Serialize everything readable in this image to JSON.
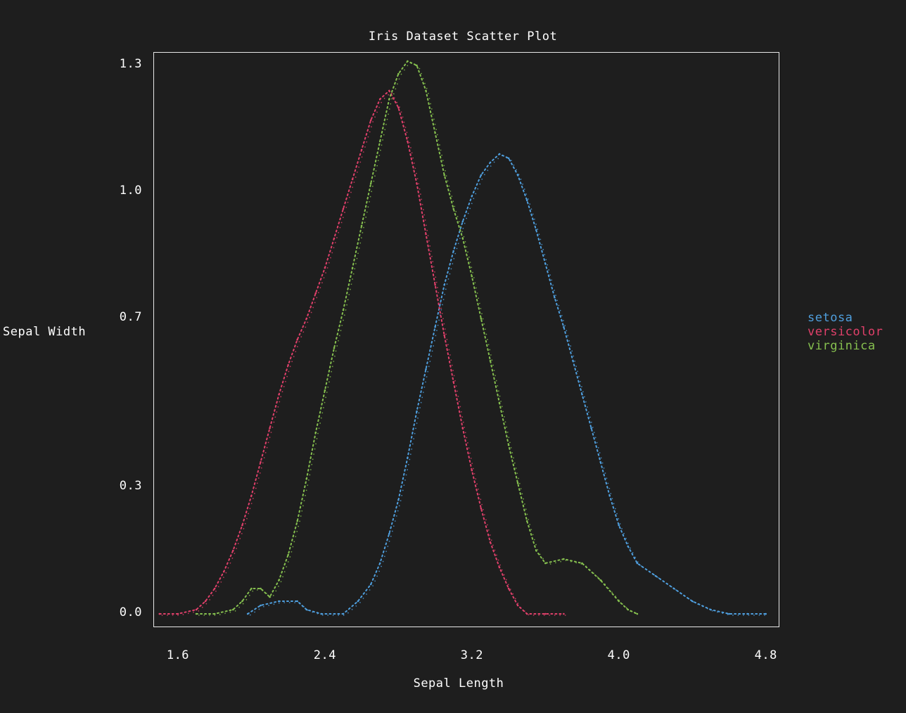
{
  "chart_data": {
    "type": "line",
    "title": "Iris Dataset Scatter Plot",
    "xlabel": "Sepal Length",
    "ylabel": "Sepal Width",
    "x_ticks": [
      "1.6",
      "2.4",
      "3.2",
      "4.0",
      "4.8"
    ],
    "x_tick_values": [
      1.6,
      2.4,
      3.2,
      4.0,
      4.8
    ],
    "y_ticks": [
      "0.0",
      "0.3",
      "0.7",
      "1.0",
      "1.3"
    ],
    "y_tick_values": [
      0.0,
      0.3,
      0.7,
      1.0,
      1.3
    ],
    "xlim": [
      1.47,
      4.87
    ],
    "ylim": [
      -0.03,
      1.33
    ],
    "grid": false,
    "legend_position": "right",
    "marker": "braille-dot",
    "series": [
      {
        "name": "setosa",
        "color": "#4f9fde",
        "points": [
          [
            1.98,
            0.0
          ],
          [
            2.05,
            0.02
          ],
          [
            2.15,
            0.03
          ],
          [
            2.25,
            0.03
          ],
          [
            2.3,
            0.01
          ],
          [
            2.38,
            0.0
          ],
          [
            2.5,
            0.0
          ],
          [
            2.58,
            0.03
          ],
          [
            2.65,
            0.07
          ],
          [
            2.7,
            0.12
          ],
          [
            2.75,
            0.19
          ],
          [
            2.8,
            0.27
          ],
          [
            2.85,
            0.37
          ],
          [
            2.9,
            0.48
          ],
          [
            2.95,
            0.58
          ],
          [
            3.0,
            0.68
          ],
          [
            3.05,
            0.78
          ],
          [
            3.1,
            0.86
          ],
          [
            3.15,
            0.93
          ],
          [
            3.2,
            0.99
          ],
          [
            3.25,
            1.04
          ],
          [
            3.3,
            1.07
          ],
          [
            3.35,
            1.09
          ],
          [
            3.4,
            1.08
          ],
          [
            3.45,
            1.04
          ],
          [
            3.5,
            0.98
          ],
          [
            3.55,
            0.91
          ],
          [
            3.6,
            0.83
          ],
          [
            3.65,
            0.75
          ],
          [
            3.7,
            0.68
          ],
          [
            3.75,
            0.6
          ],
          [
            3.8,
            0.52
          ],
          [
            3.85,
            0.44
          ],
          [
            3.9,
            0.36
          ],
          [
            3.95,
            0.28
          ],
          [
            4.0,
            0.21
          ],
          [
            4.05,
            0.16
          ],
          [
            4.1,
            0.12
          ],
          [
            4.2,
            0.09
          ],
          [
            4.3,
            0.06
          ],
          [
            4.4,
            0.03
          ],
          [
            4.5,
            0.01
          ],
          [
            4.6,
            0.0
          ],
          [
            4.7,
            0.0
          ],
          [
            4.8,
            0.0
          ]
        ]
      },
      {
        "name": "versicolor",
        "color": "#e0406a",
        "points": [
          [
            1.5,
            0.0
          ],
          [
            1.6,
            0.0
          ],
          [
            1.7,
            0.01
          ],
          [
            1.75,
            0.03
          ],
          [
            1.8,
            0.06
          ],
          [
            1.85,
            0.1
          ],
          [
            1.9,
            0.15
          ],
          [
            1.95,
            0.21
          ],
          [
            2.0,
            0.28
          ],
          [
            2.05,
            0.36
          ],
          [
            2.1,
            0.44
          ],
          [
            2.15,
            0.52
          ],
          [
            2.2,
            0.59
          ],
          [
            2.25,
            0.65
          ],
          [
            2.3,
            0.7
          ],
          [
            2.35,
            0.76
          ],
          [
            2.4,
            0.82
          ],
          [
            2.45,
            0.89
          ],
          [
            2.5,
            0.96
          ],
          [
            2.55,
            1.03
          ],
          [
            2.6,
            1.1
          ],
          [
            2.65,
            1.17
          ],
          [
            2.7,
            1.22
          ],
          [
            2.75,
            1.24
          ],
          [
            2.8,
            1.2
          ],
          [
            2.85,
            1.12
          ],
          [
            2.9,
            1.02
          ],
          [
            2.95,
            0.9
          ],
          [
            3.0,
            0.78
          ],
          [
            3.05,
            0.66
          ],
          [
            3.1,
            0.55
          ],
          [
            3.15,
            0.44
          ],
          [
            3.2,
            0.34
          ],
          [
            3.25,
            0.25
          ],
          [
            3.3,
            0.17
          ],
          [
            3.35,
            0.11
          ],
          [
            3.4,
            0.06
          ],
          [
            3.45,
            0.02
          ],
          [
            3.5,
            0.0
          ],
          [
            3.6,
            0.0
          ],
          [
            3.7,
            0.0
          ]
        ]
      },
      {
        "name": "virginica",
        "color": "#86c04f",
        "points": [
          [
            1.7,
            0.0
          ],
          [
            1.8,
            0.0
          ],
          [
            1.9,
            0.01
          ],
          [
            1.95,
            0.03
          ],
          [
            2.0,
            0.06
          ],
          [
            2.05,
            0.06
          ],
          [
            2.1,
            0.04
          ],
          [
            2.15,
            0.08
          ],
          [
            2.2,
            0.14
          ],
          [
            2.25,
            0.22
          ],
          [
            2.3,
            0.32
          ],
          [
            2.35,
            0.43
          ],
          [
            2.4,
            0.53
          ],
          [
            2.45,
            0.63
          ],
          [
            2.5,
            0.72
          ],
          [
            2.55,
            0.82
          ],
          [
            2.6,
            0.92
          ],
          [
            2.65,
            1.02
          ],
          [
            2.7,
            1.12
          ],
          [
            2.75,
            1.22
          ],
          [
            2.8,
            1.28
          ],
          [
            2.85,
            1.31
          ],
          [
            2.9,
            1.3
          ],
          [
            2.95,
            1.24
          ],
          [
            3.0,
            1.14
          ],
          [
            3.05,
            1.04
          ],
          [
            3.1,
            0.96
          ],
          [
            3.15,
            0.89
          ],
          [
            3.2,
            0.8
          ],
          [
            3.25,
            0.7
          ],
          [
            3.3,
            0.6
          ],
          [
            3.35,
            0.5
          ],
          [
            3.4,
            0.4
          ],
          [
            3.45,
            0.31
          ],
          [
            3.5,
            0.22
          ],
          [
            3.55,
            0.15
          ],
          [
            3.6,
            0.12
          ],
          [
            3.7,
            0.13
          ],
          [
            3.8,
            0.12
          ],
          [
            3.9,
            0.08
          ],
          [
            4.0,
            0.03
          ],
          [
            4.05,
            0.01
          ],
          [
            4.1,
            0.0
          ]
        ]
      }
    ]
  }
}
